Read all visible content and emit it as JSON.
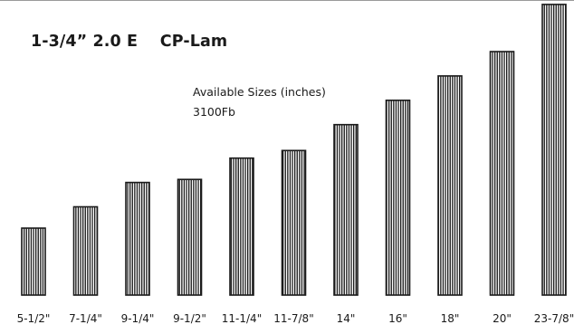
{
  "chart_data": {
    "type": "bar",
    "title": "1-3/4” 2.0 E    CP-Lam",
    "subtitle": "Available Sizes (inches)",
    "annotation": "3100Fb",
    "categories": [
      "5-1/2\"",
      "7-1/4\"",
      "9-1/4\"",
      "9-1/2\"",
      "11-1/4\"",
      "11-7/8\"",
      "14\"",
      "16\"",
      "18\"",
      "20\"",
      "23-7/8\""
    ],
    "values": [
      5.5,
      7.25,
      9.25,
      9.5,
      11.25,
      11.875,
      14,
      16,
      18,
      20,
      23.875
    ],
    "ylim": [
      0,
      24
    ],
    "grid": false,
    "legend": "none",
    "bar_style": "vertical-stripes",
    "colors": {
      "bar_stroke": "#1a1a1a",
      "bar_fill": "#ffffff",
      "text": "#1a1a1a",
      "rule": "#9a9a9a"
    }
  }
}
